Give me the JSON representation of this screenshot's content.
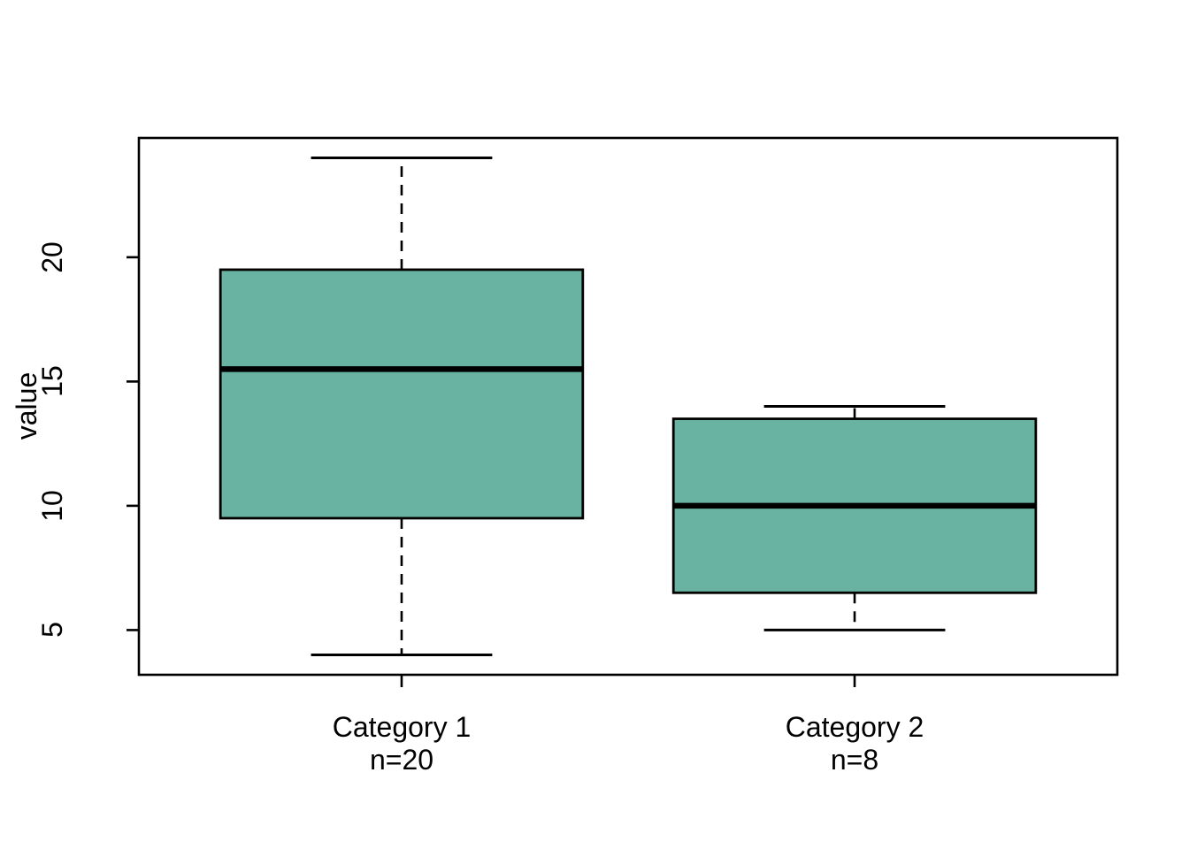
{
  "chart_data": {
    "type": "boxplot",
    "title": "",
    "xlabel": "",
    "ylabel": "value",
    "yticks": [
      5,
      10,
      15,
      20
    ],
    "ylim": [
      3.2,
      24.8
    ],
    "grid": false,
    "background_color": "#ffffff",
    "box_fill_color": "#69b3a2",
    "line_color": "#000000",
    "groups": [
      {
        "label": "Category 1",
        "count_label": "n=20",
        "n": 20,
        "whisker_low": 4,
        "q1": 9.5,
        "median": 15.5,
        "q3": 19.5,
        "whisker_high": 24
      },
      {
        "label": "Category 2",
        "count_label": "n=8",
        "n": 8,
        "whisker_low": 5,
        "q1": 6.5,
        "median": 10,
        "q3": 13.5,
        "whisker_high": 14
      }
    ]
  }
}
